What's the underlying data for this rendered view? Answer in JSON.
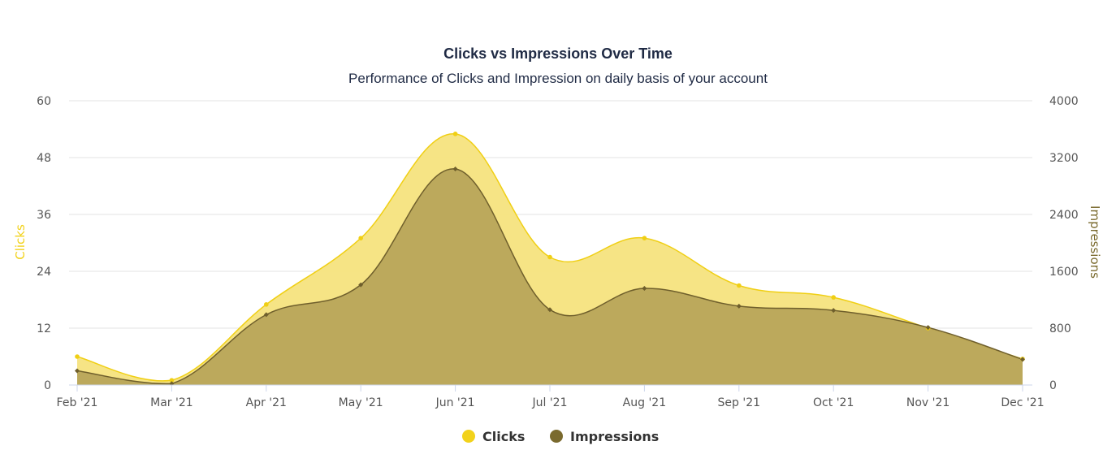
{
  "chart_data": {
    "type": "area",
    "title": "Clicks vs Impressions Over Time",
    "subtitle": "Performance of Clicks and Impression on daily basis of your account",
    "categories": [
      "Feb '21",
      "Mar '21",
      "Apr '21",
      "May '21",
      "Jun '21",
      "Jul '21",
      "Aug '21",
      "Sep '21",
      "Oct '21",
      "Nov '21",
      "Dec '21"
    ],
    "y_left": {
      "label": "Clicks",
      "range": [
        0,
        60
      ],
      "ticks": [
        "0",
        "12",
        "24",
        "36",
        "48",
        "60"
      ],
      "color": "#f2d21b"
    },
    "y_right": {
      "label": "Impressions",
      "range": [
        0,
        4000
      ],
      "ticks": [
        "0",
        "800",
        "1600",
        "2400",
        "3200",
        "4000"
      ],
      "color": "#7a6a2e"
    },
    "series": [
      {
        "name": "Clicks",
        "axis": "left",
        "values": [
          6,
          1,
          17,
          31,
          53,
          27,
          31,
          21,
          18.5,
          12,
          5.5
        ],
        "fill": "#f5e37e",
        "line": "#f0cf14",
        "marker": "circle"
      },
      {
        "name": "Impressions",
        "axis": "right",
        "values": [
          200,
          20,
          990,
          1410,
          3040,
          1060,
          1360,
          1110,
          1050,
          810,
          360
        ],
        "fill": "#b8a55a",
        "line": "#6f5f2c",
        "marker": "diamond"
      }
    ],
    "grid": true,
    "legend": "bottom-center"
  }
}
